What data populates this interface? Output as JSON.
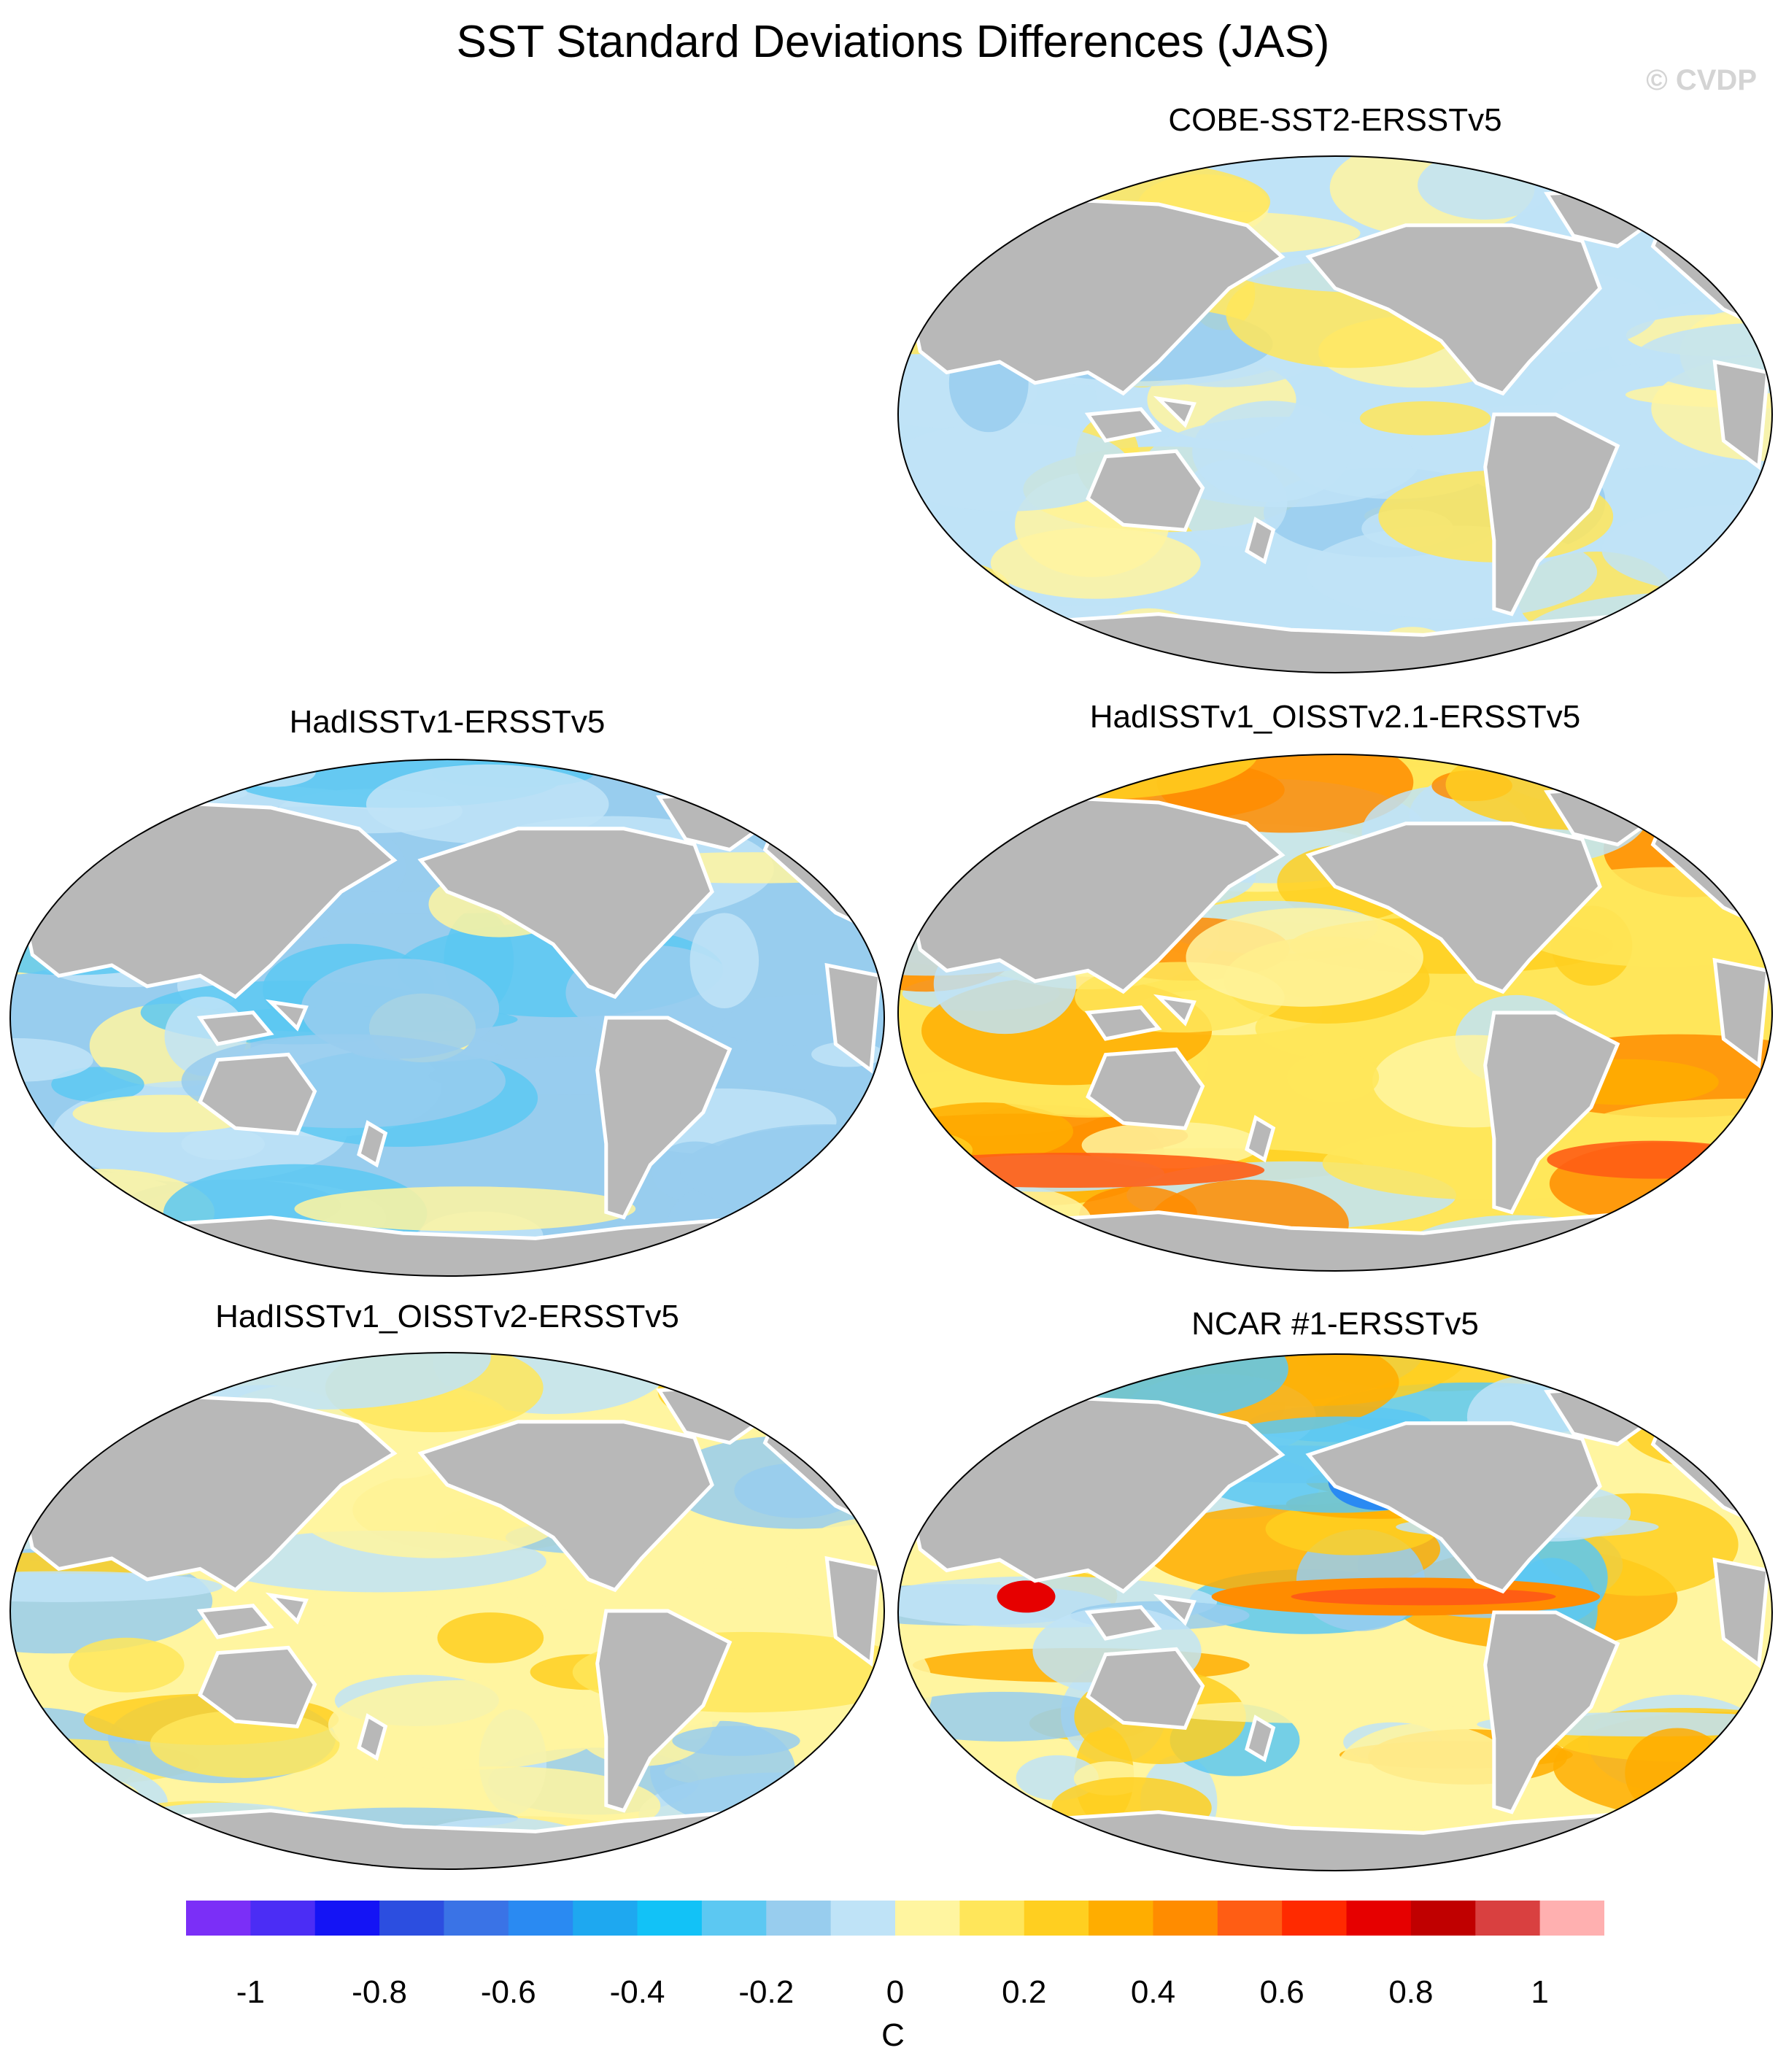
{
  "title": "SST Standard Deviations Differences (JAS)",
  "watermark": "© CVDP",
  "panels": [
    {
      "title": "COBE-SST2-ERSSTv5",
      "style": "mixed"
    },
    {
      "title": "HadISSTv1-ERSSTv5",
      "style": "cool"
    },
    {
      "title": "HadISSTv1_OISSTv2.1-ERSSTv5",
      "style": "warm"
    },
    {
      "title": "HadISSTv1_OISSTv2-ERSSTv5",
      "style": "mixed-warm"
    },
    {
      "title": "NCAR #1-ERSSTv5",
      "style": "enso"
    }
  ],
  "colorbar": {
    "colors": [
      "#7b2ff7",
      "#4b2df5",
      "#1414f5",
      "#2c4ee0",
      "#3a73e6",
      "#2a8af2",
      "#1ea8f0",
      "#12c2f7",
      "#5cc8f2",
      "#98cdee",
      "#bfe3f7",
      "#fff5a0",
      "#ffe65a",
      "#ffcf20",
      "#ffad00",
      "#ff8c00",
      "#ff5d14",
      "#ff2a00",
      "#e60000",
      "#c00000",
      "#d94040",
      "#ffb0b0"
    ],
    "tick_labels": [
      "-1",
      "-0.8",
      "-0.6",
      "-0.4",
      "-0.2",
      "0",
      "0.2",
      "0.4",
      "0.6",
      "0.8",
      "1"
    ],
    "unit": "C"
  }
}
